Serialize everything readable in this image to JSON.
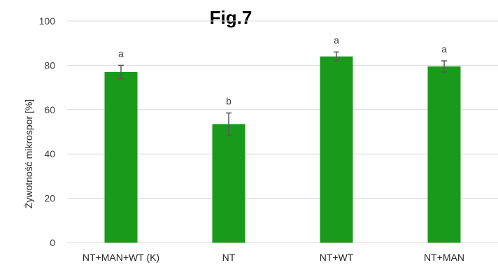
{
  "figure_label": "Fig.7",
  "chart_data": {
    "type": "bar",
    "title": "",
    "xlabel": "",
    "ylabel": "Żywotność mikrospor [%]",
    "ylim": [
      0,
      100
    ],
    "yticks": [
      0,
      20,
      40,
      60,
      80,
      100
    ],
    "grid": true,
    "bar_color": "#1a9a1a",
    "grid_color": "#d9d9d9",
    "error_bar_color": "#595959",
    "categories": [
      "NT+MAN+WT (K)",
      "NT",
      "NT+WT",
      "NT+MAN"
    ],
    "values": [
      77,
      53.5,
      84,
      79.5
    ],
    "errors": [
      3,
      5,
      2,
      2.5
    ],
    "significance_labels": [
      "a",
      "b",
      "a",
      "a"
    ]
  }
}
